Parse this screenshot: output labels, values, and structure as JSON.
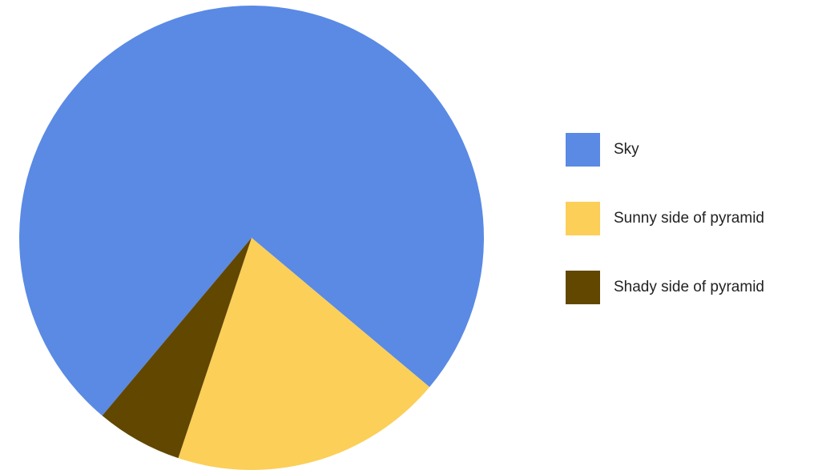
{
  "chart_data": {
    "type": "pie",
    "start_angle_deg": 130,
    "direction": "clockwise",
    "slices": [
      {
        "label": "Sky",
        "value": 75,
        "color": "#5a8ae4"
      },
      {
        "label": "Sunny side of pyramid",
        "value": 19,
        "color": "#fbcf58"
      },
      {
        "label": "Shady side of pyramid",
        "value": 6,
        "color": "#614700"
      }
    ],
    "legend_position": "right"
  }
}
